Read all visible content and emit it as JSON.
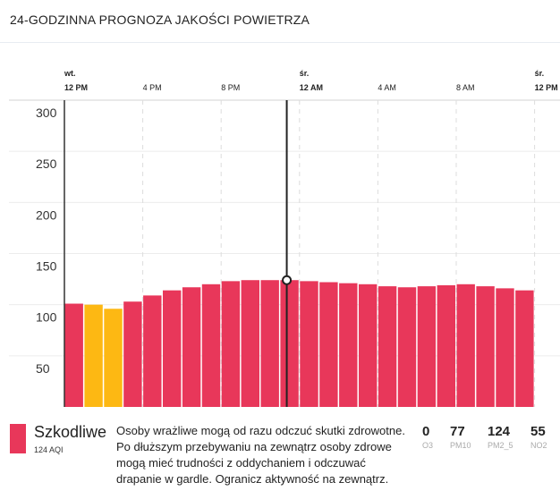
{
  "title": "24-GODZINNA PROGNOZA JAKOŚCI POWIETRZA",
  "colors": {
    "harmful": "#e8375a",
    "moderate": "#fdb813"
  },
  "chart_data": {
    "type": "bar",
    "ylim": [
      0,
      300
    ],
    "yticks": [
      "50",
      "100",
      "150",
      "200",
      "250",
      "300"
    ],
    "yticks_values": [
      50,
      100,
      150,
      200,
      250,
      300
    ],
    "xticks": [
      {
        "day": "wt.",
        "time": "12 PM",
        "bold": true,
        "hour": 0
      },
      {
        "day": "",
        "time": "4 PM",
        "bold": false,
        "hour": 4
      },
      {
        "day": "",
        "time": "8 PM",
        "bold": false,
        "hour": 8
      },
      {
        "day": "śr.",
        "time": "12 AM",
        "bold": true,
        "hour": 12
      },
      {
        "day": "",
        "time": "4 AM",
        "bold": false,
        "hour": 16
      },
      {
        "day": "",
        "time": "8 AM",
        "bold": false,
        "hour": 20
      },
      {
        "day": "śr.",
        "time": "12 PM",
        "bold": true,
        "hour": 24
      }
    ],
    "values": [
      101,
      100,
      96,
      103,
      109,
      114,
      117,
      120,
      123,
      124,
      124,
      124,
      123,
      122,
      121,
      120,
      118,
      117,
      118,
      119,
      120,
      118,
      116,
      114
    ],
    "categories_color": [
      "harmful",
      "moderate",
      "moderate",
      "harmful",
      "harmful",
      "harmful",
      "harmful",
      "harmful",
      "harmful",
      "harmful",
      "harmful",
      "harmful",
      "harmful",
      "harmful",
      "harmful",
      "harmful",
      "harmful",
      "harmful",
      "harmful",
      "harmful",
      "harmful",
      "harmful",
      "harmful",
      "harmful"
    ],
    "cursor_hour": 11.35,
    "cursor_value": 124,
    "grid": true
  },
  "summary": {
    "category": "Szkodliwe",
    "aqi": "124 AQI",
    "description": "Osoby wrażliwe mogą od razu odczuć skutki zdrowotne. Po dłuższym przebywaniu na zewnątrz osoby zdrowe mogą mieć trudności z oddychaniem i odczuwać drapanie w gardle. Ogranicz aktywność na zewnątrz.",
    "pollutants": [
      {
        "value": "0",
        "label": "O3"
      },
      {
        "value": "77",
        "label": "PM10"
      },
      {
        "value": "124",
        "label": "PM2_5"
      },
      {
        "value": "55",
        "label": "NO2"
      }
    ]
  }
}
